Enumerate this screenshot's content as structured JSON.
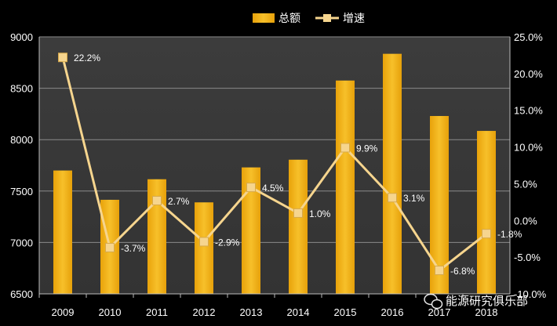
{
  "chart_data": {
    "type": "bar",
    "title": "",
    "categories": [
      "2009",
      "2010",
      "2011",
      "2012",
      "2013",
      "2014",
      "2015",
      "2016",
      "2017",
      "2018"
    ],
    "series": [
      {
        "name": "总额",
        "type": "bar",
        "axis": "left",
        "values": [
          7700,
          7415,
          7615,
          7390,
          7730,
          7805,
          8575,
          8835,
          8230,
          8085
        ],
        "color": "#f2b01e"
      },
      {
        "name": "增速",
        "type": "line",
        "axis": "right",
        "values": [
          22.2,
          -3.7,
          2.7,
          -2.9,
          4.5,
          1.0,
          9.9,
          3.1,
          -6.8,
          -1.8
        ],
        "data_labels": [
          "22.2%",
          "-3.7%",
          "2.7%",
          "-2.9%",
          "4.5%",
          "1.0%",
          "9.9%",
          "3.1%",
          "-6.8%",
          "-1.8%"
        ],
        "color": "#f6d58e"
      }
    ],
    "y_left": {
      "min": 6500,
      "max": 9000,
      "ticks": [
        6500,
        7000,
        7500,
        8000,
        8500,
        9000
      ],
      "tick_labels": [
        "6500",
        "7000",
        "7500",
        "8000",
        "8500",
        "9000"
      ]
    },
    "y_right": {
      "min": -10,
      "max": 25,
      "ticks": [
        -10,
        -5,
        0,
        5,
        10,
        15,
        20,
        25
      ],
      "tick_labels": [
        "-10.0%",
        "-5.0%",
        "0.0%",
        "5.0%",
        "10.0%",
        "15.0%",
        "20.0%",
        "25.0%"
      ]
    },
    "grid": true,
    "legend_position": "top-right"
  },
  "watermark": {
    "text": "能源研究俱乐部",
    "icon": "wechat-icon"
  },
  "colors": {
    "background": "#000000",
    "plot_background": "#3a3a3a",
    "grid": "#8a8a8a",
    "text": "#ffffff",
    "bar": "#f2b01e",
    "line": "#f6d58e"
  }
}
